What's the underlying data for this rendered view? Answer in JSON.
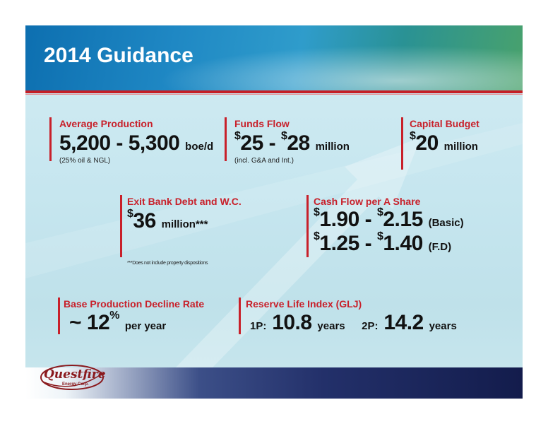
{
  "title": "2014 Guidance",
  "metrics": {
    "avg_production": {
      "label": "Average Production",
      "value": "5,200 - 5,300",
      "unit": "boe/d",
      "note": "(25% oil & NGL)"
    },
    "funds_flow": {
      "label": "Funds Flow",
      "dollar1": "$",
      "value1": "25 - ",
      "dollar2": "$",
      "value2": "28",
      "unit": "million",
      "note": "(incl. G&A and Int.)"
    },
    "capital_budget": {
      "label": "Capital Budget",
      "dollar": "$",
      "value": "20",
      "unit": "million"
    },
    "exit_bank_debt": {
      "label": "Exit Bank Debt and W.C.",
      "dollar": "$",
      "value": "36",
      "unit": "million***",
      "footnote": "***Does not include property dispositions"
    },
    "cash_flow_share": {
      "label": "Cash Flow per A Share",
      "basic": {
        "dollar1": "$",
        "value1": "1.90 - ",
        "dollar2": "$",
        "value2": "2.15",
        "tag": "(Basic)"
      },
      "fd": {
        "dollar1": "$",
        "value1": "1.25 - ",
        "dollar2": "$",
        "value2": "1.40",
        "tag": "(F.D)"
      }
    },
    "decline_rate": {
      "label": "Base Production Decline Rate",
      "prefix": "~ 12",
      "percent": "%",
      "unit": "per year"
    },
    "reserve_life": {
      "label": "Reserve Life Index (GLJ)",
      "p1_label": "1P:",
      "p1_value": "10.8",
      "p1_unit": "years",
      "p2_label": "2P:",
      "p2_value": "14.2",
      "p2_unit": "years"
    }
  },
  "logo": {
    "main": "Questfire",
    "sub": "Energy Corp."
  }
}
